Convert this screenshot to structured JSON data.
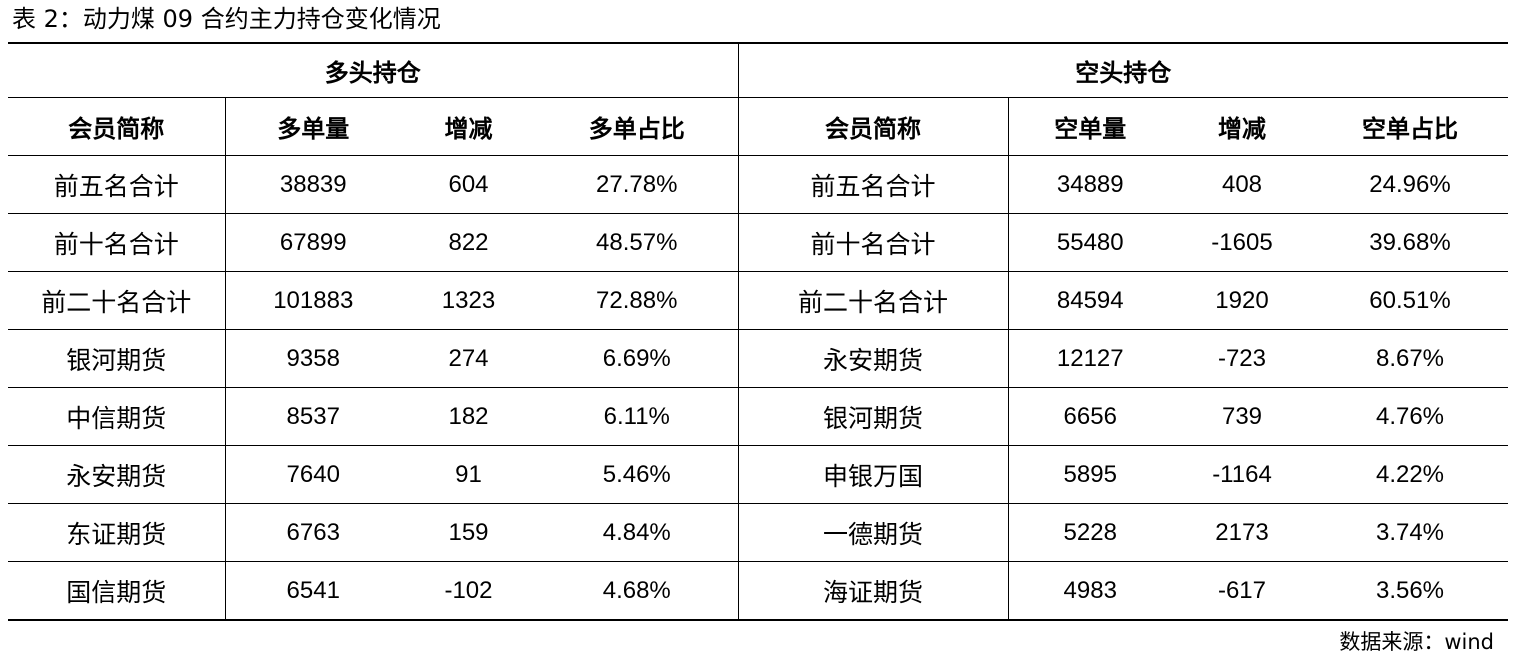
{
  "caption": "表 2：动力煤 09 合约主力持仓变化情况",
  "groups": {
    "long": "多头持仓",
    "short": "空头持仓"
  },
  "columns": [
    "会员简称",
    "多单量",
    "增减",
    "多单占比",
    "会员简称",
    "空单量",
    "增减",
    "空单占比"
  ],
  "rows": [
    [
      "前五名合计",
      "38839",
      "604",
      "27.78%",
      "前五名合计",
      "34889",
      "408",
      "24.96%"
    ],
    [
      "前十名合计",
      "67899",
      "822",
      "48.57%",
      "前十名合计",
      "55480",
      "-1605",
      "39.68%"
    ],
    [
      "前二十名合计",
      "101883",
      "1323",
      "72.88%",
      "前二十名合计",
      "84594",
      "1920",
      "60.51%"
    ],
    [
      "银河期货",
      "9358",
      "274",
      "6.69%",
      "永安期货",
      "12127",
      "-723",
      "8.67%"
    ],
    [
      "中信期货",
      "8537",
      "182",
      "6.11%",
      "银河期货",
      "6656",
      "739",
      "4.76%"
    ],
    [
      "永安期货",
      "7640",
      "91",
      "5.46%",
      "申银万国",
      "5895",
      "-1164",
      "4.22%"
    ],
    [
      "东证期货",
      "6763",
      "159",
      "4.84%",
      "一德期货",
      "5228",
      "2173",
      "3.74%"
    ],
    [
      "国信期货",
      "6541",
      "-102",
      "4.68%",
      "海证期货",
      "4983",
      "-617",
      "3.56%"
    ]
  ],
  "source": "数据来源：wind"
}
